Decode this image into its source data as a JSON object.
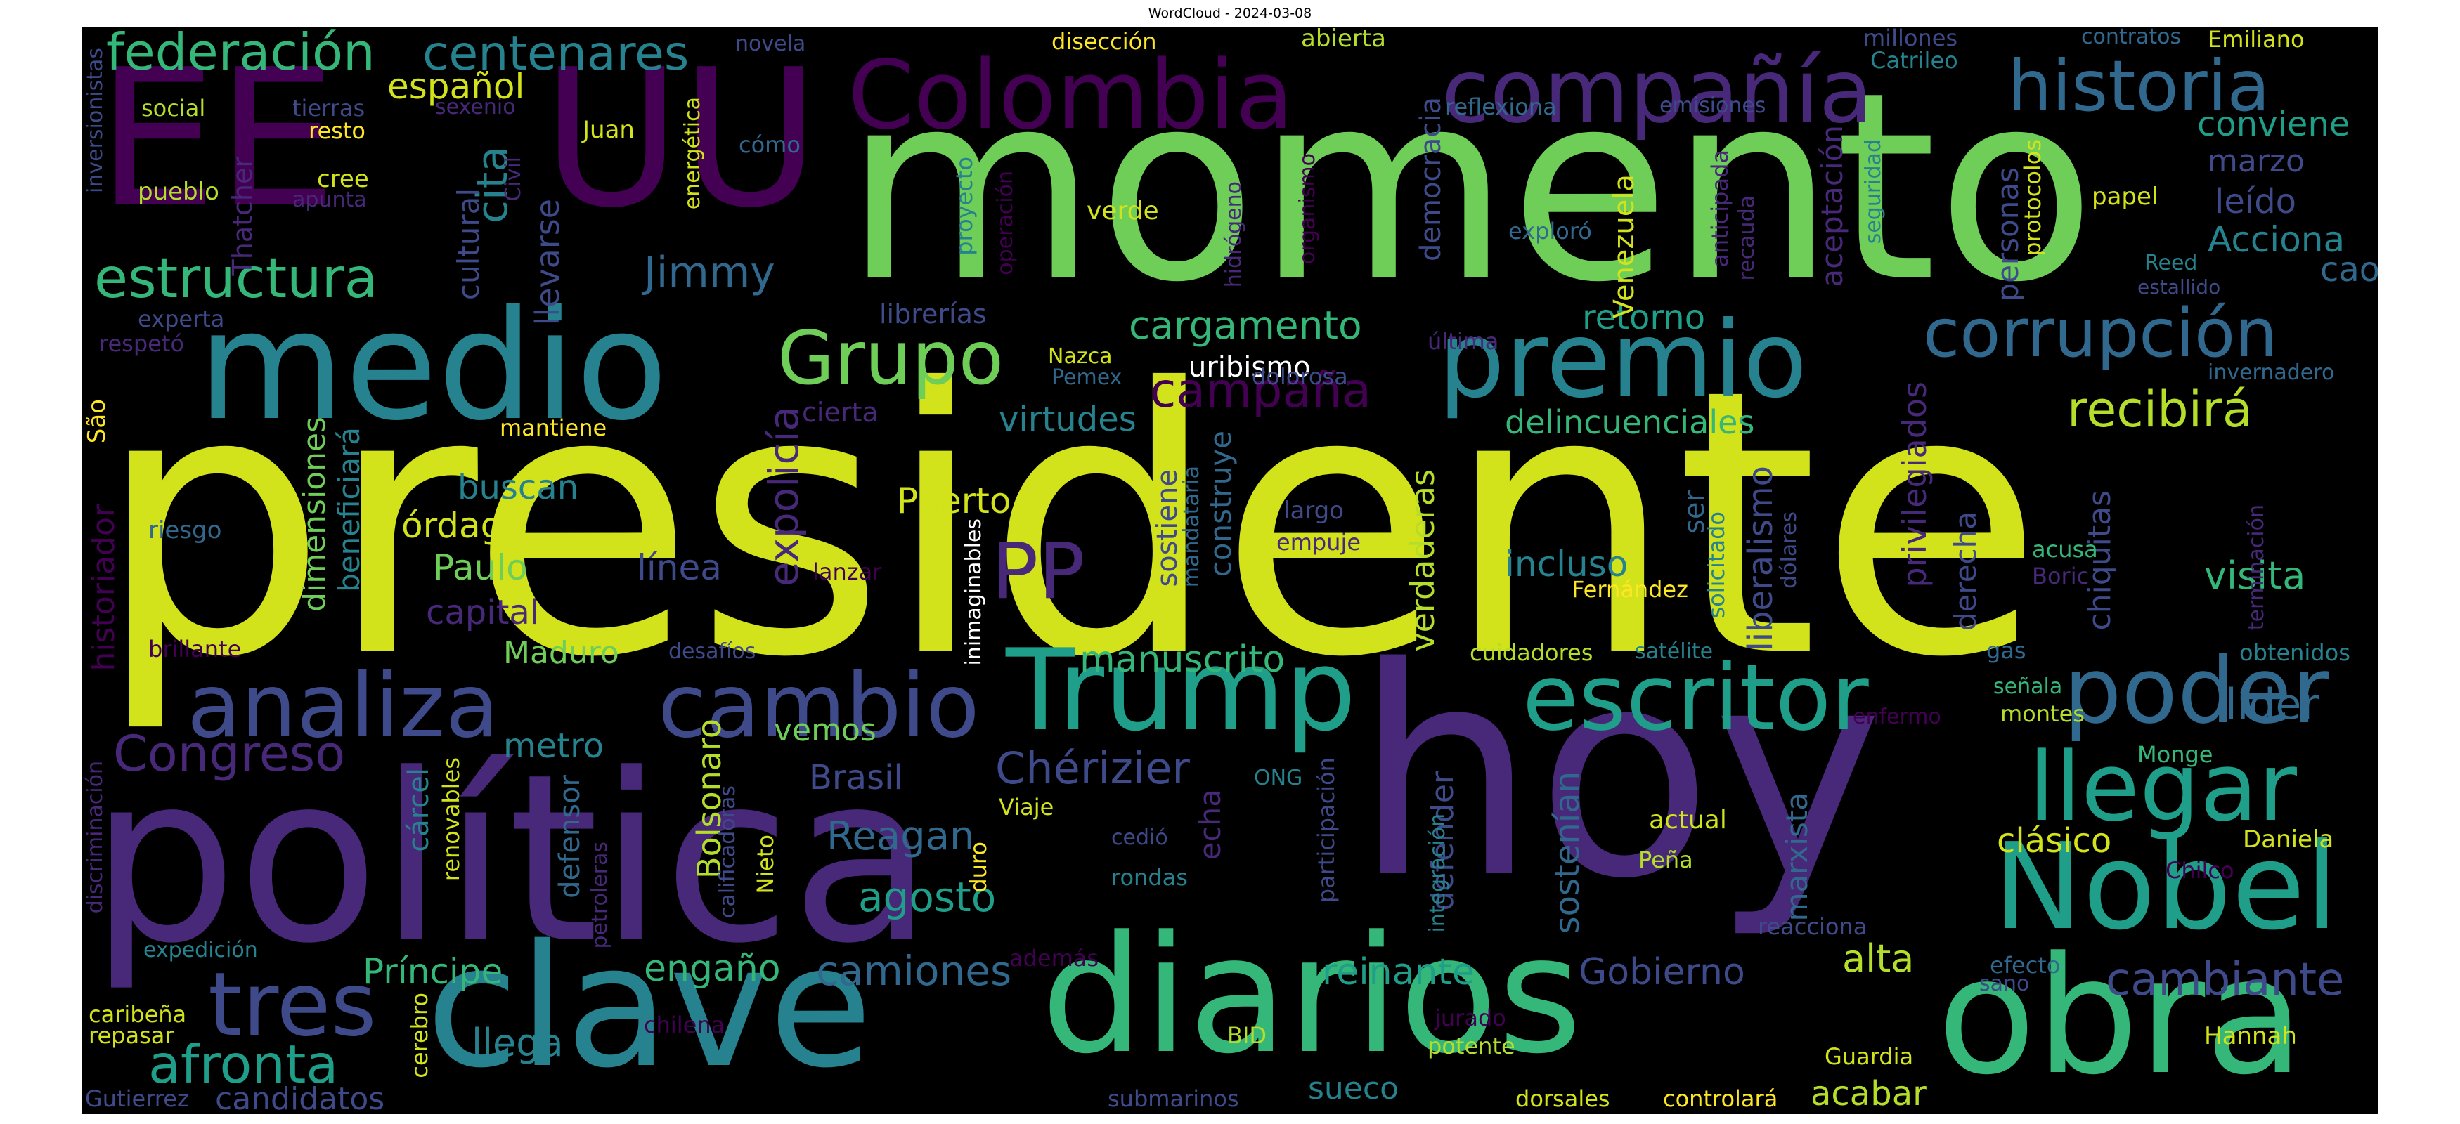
{
  "title": "WordCloud - 2024-03-08",
  "palette": {
    "c1": "#440154",
    "c2": "#482878",
    "c3": "#3e4a89",
    "c4": "#31688e",
    "c5": "#26828e",
    "c6": "#1f9e89",
    "c7": "#35b779",
    "c8": "#6ece58",
    "c9": "#b5de2b",
    "c10": "#d2e21b",
    "c11": "#fde725"
  },
  "words": {
    "presidente": "presidente",
    "momento": "momento",
    "hoy": "hoy",
    "politica": "política",
    "EE": "EE",
    "UU": "UU",
    "medio": "medio",
    "clave": "clave",
    "diarios": "diarios",
    "obra": "obra",
    "Nobel": "Nobel",
    "Colombia": "Colombia",
    "compania": "compañía",
    "premio": "premio",
    "Trump": "Trump",
    "escritor": "escritor",
    "poder": "poder",
    "analiza": "analiza",
    "cambio": "cambio",
    "llegar": "llegar",
    "historia": "historia",
    "corrupcion": "corrupción",
    "Grupo": "Grupo",
    "tres": "tres",
    "PP": "PP",
    "estructura": "estructura",
    "federacion": "federación",
    "centenares": "centenares",
    "Congreso": "Congreso",
    "Cherizier": "Chérizier",
    "afronta": "afronta",
    "recibira": "recibirá",
    "campana": "campaña",
    "cargamento": "cargamento",
    "Jimmy": "Jimmy",
    "cita": "cita",
    "cambiante": "cambiante",
    "camiones": "camiones",
    "lider": "líder",
    "reinante": "reinante",
    "Gobierno": "Gobierno",
    "manuscrito": "manuscrito",
    "agosto": "agosto",
    "Reagan": "Reagan",
    "retorno": "retorno",
    "espanol": "español",
    "delincuenciales": "delincuenciales",
    "virtudes": "virtudes",
    "uribismo": "uribismo",
    "visita": "visita",
    "Acciona": "Acciona",
    "conviene": "conviene",
    "caos": "caos",
    "marzo": "marzo",
    "leido": "leído",
    "clasico": "clásico",
    "Puerto": "Puerto",
    "Paulo": "Paulo",
    "ordago": "órdago",
    "buscan": "buscan",
    "linea": "línea",
    "incluso": "incluso",
    "capital": "capital",
    "Maduro": "Maduro",
    "metro": "metro",
    "vemos": "vemos",
    "Brasil": "Brasil",
    "llega": "llega",
    "Principe": "Príncipe",
    "engano": "engaño",
    "alta": "alta",
    "candidatos": "candidatos",
    "acabar": "acabar",
    "sueco": "sueco",
    "librerias": "librerías",
    "cierta": "cierta",
    "expolicia": "expolicía",
    "dimensiones": "dimensiones",
    "beneficiara": "beneficiará",
    "cultural": "cultural",
    "llevarse": "llevarse",
    "historiador": "historiador",
    "Bolsonaro": "Bolsonaro",
    "defensor": "defensor",
    "carcel": "cárcel",
    "echa": "echa",
    "construye": "construye",
    "sostiene": "sostiene",
    "verdaderas": "verdaderas",
    "defender": "defender",
    "sostenian": "sostenían",
    "liberalismo": "liberalismo",
    "ser": "ser",
    "privilegiados": "privilegiados",
    "derecha": "derecha",
    "marxista": "marxista",
    "chiquitas": "chiquitas",
    "personas": "personas",
    "aceptacion": "aceptación",
    "democracia": "democracia",
    "Venezuela": "Venezuela",
    "Sao": "São",
    "Thatcher": "Thatcher",
    "novela": "novela",
    "diseccion": "disección",
    "abierta": "abierta",
    "millones": "millones",
    "contratos": "contratos",
    "Emiliano": "Emiliano",
    "Catrileo": "Catrileo",
    "social": "social",
    "tierras": "tierras",
    "sexenio": "sexenio",
    "resto": "resto",
    "Juan": "Juan",
    "reflexiona": "reflexiona",
    "emisiones": "emisiones",
    "como": "cómo",
    "pueblo": "pueblo",
    "cree": "cree",
    "apunta": "apunta",
    "verde": "verde",
    "exploro": "exploró",
    "papel": "papel",
    "experta": "experta",
    "respeto": "respetó",
    "Nazca": "Nazca",
    "Pemex": "Pemex",
    "dolorosa": "dolorosa",
    "ultima": "última",
    "Reed": "Reed",
    "estallido": "estallido",
    "invernadero": "invernadero",
    "mantiene": "mantiene",
    "riesgo": "riesgo",
    "largo": "largo",
    "empuje": "empuje",
    "lanzar": "lanzar",
    "acusa": "acusa",
    "Boric": "Boric",
    "Fernandez": "Fernández",
    "brillante": "brillante",
    "desafios": "desafíos",
    "cuidadores": "cuidadores",
    "satelite": "satélite",
    "gas": "gas",
    "obtenidos": "obtenidos",
    "senala": "señala",
    "montes": "montes",
    "enfermo": "enfermo",
    "Monge": "Monge",
    "ONG": "ONG",
    "actual": "actual",
    "Viaje": "Viaje",
    "cedio": "cedió",
    "Daniela": "Daniela",
    "Chilco": "Chilco",
    "rondas": "rondas",
    "Pena": "Peña",
    "expedicion": "expedición",
    "ademas": "además",
    "reacciona": "reacciona",
    "efecto": "efecto",
    "sano": "sano",
    "caribena": "caribeña",
    "repasar": "repasar",
    "chilena": "chilena",
    "BID": "BID",
    "jurado": "jurado",
    "potente": "potente",
    "Guardia": "Guardia",
    "Hannah": "Hannah",
    "Gutierrez": "Gutierrez",
    "submarinos": "submarinos",
    "dorsales": "dorsales",
    "controlara": "controlará",
    "inversionistas": "inversionistas",
    "discriminacion": "discriminación",
    "renovables": "renovables",
    "petroleras": "petroleras",
    "calificadoras": "calificadoras",
    "Nieto": "Nieto",
    "duro": "duro",
    "participacion": "participación",
    "integracion": "integración",
    "cerebro": "cerebro",
    "inimaginables": "inimaginables",
    "mandataria": "mandataria",
    "solicitado": "solicitado",
    "dolares": "dólares",
    "terminacion": "terminación",
    "Civil": "Civil",
    "energetica": "energética",
    "proyecto": "proyecto",
    "operacion": "operación",
    "hidrogeno": "hidrógeno",
    "organismo": "organismo",
    "anticipada": "anticipada",
    "recauda": "recauda",
    "seguridad": "seguridad",
    "protocolos": "protocolos"
  }
}
